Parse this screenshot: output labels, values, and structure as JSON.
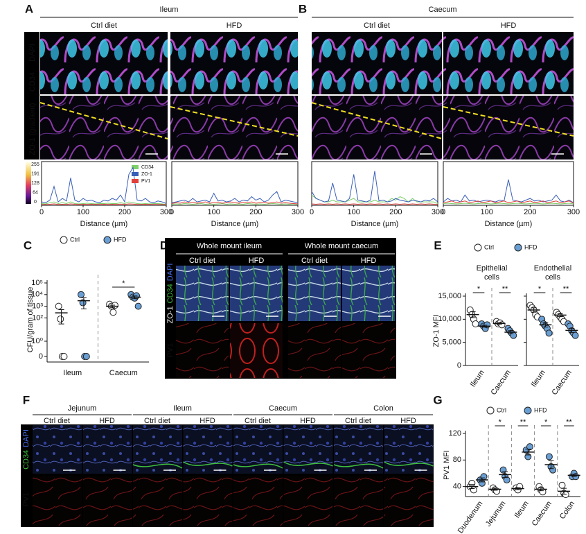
{
  "figure": {
    "A": {
      "letter": "A",
      "title": "Ileum",
      "columns": [
        "Ctrl diet",
        "HFD"
      ]
    },
    "B": {
      "letter": "B",
      "title": "Caecum",
      "columns": [
        "Ctrl diet",
        "HFD"
      ]
    },
    "channels_AB": [
      "DAPI",
      "CD34",
      "ZO-1 (gradient)"
    ],
    "colorbar_ticks": [
      255,
      191,
      128,
      64,
      0
    ],
    "C": {
      "letter": "C"
    },
    "D": {
      "letter": "D",
      "groups": [
        {
          "title": "Whole mount ileum",
          "columns": [
            "Ctrl diet",
            "HFD"
          ]
        },
        {
          "title": "Whole mount caecum",
          "columns": [
            "Ctrl diet",
            "HFD"
          ]
        }
      ],
      "channels": [
        "ZO-1",
        "CD34",
        "DAPI"
      ],
      "channel_bottom": "PV1"
    },
    "E": {
      "letter": "E"
    },
    "F": {
      "letter": "F",
      "groups": [
        {
          "title": "Jejunum",
          "columns": [
            "Ctrl diet",
            "HFD"
          ]
        },
        {
          "title": "Ileum",
          "columns": [
            "Ctrl diet",
            "HFD"
          ]
        },
        {
          "title": "Caecum",
          "columns": [
            "Ctrl diet",
            "HFD"
          ]
        },
        {
          "title": "Colon",
          "columns": [
            "Ctrl diet",
            "HFD"
          ]
        }
      ],
      "channels": [
        "CD34",
        "DAPI"
      ],
      "channel_bottom": "PV1"
    },
    "G": {
      "letter": "G"
    }
  },
  "chart_data": [
    {
      "type": "line",
      "xlabel": "Distance (µm)",
      "x": [
        0,
        10,
        20,
        30,
        40,
        50,
        60,
        70,
        80,
        90,
        100,
        110,
        120,
        130,
        140,
        150,
        160,
        170,
        180,
        190,
        200,
        210,
        220,
        230,
        240,
        250,
        260,
        270,
        280,
        290,
        300
      ],
      "xlim": [
        0,
        300
      ],
      "xticks": [
        0,
        100,
        200,
        300
      ],
      "ylim": [
        0,
        255
      ],
      "series": [
        {
          "name": "CD34",
          "color": "#7fd06a",
          "values": [
            10,
            8,
            15,
            20,
            10,
            15,
            10,
            20,
            10,
            8,
            10,
            12,
            10,
            8,
            10,
            10,
            12,
            10,
            10,
            15,
            10,
            20,
            15,
            10,
            8,
            10,
            8,
            10,
            10,
            8,
            5
          ]
        },
        {
          "name": "ZO-1",
          "color": "#3a5fb8",
          "values": [
            20,
            15,
            30,
            110,
            20,
            40,
            25,
            160,
            30,
            20,
            40,
            25,
            30,
            20,
            15,
            30,
            25,
            40,
            30,
            60,
            20,
            180,
            220,
            30,
            25,
            40,
            20,
            15,
            25,
            20,
            10
          ]
        },
        {
          "name": "PV1",
          "color": "#e0403a",
          "values": [
            5,
            4,
            6,
            8,
            5,
            6,
            5,
            8,
            6,
            5,
            6,
            5,
            6,
            5,
            5,
            6,
            5,
            6,
            5,
            7,
            5,
            8,
            7,
            5,
            5,
            6,
            5,
            5,
            5,
            4,
            3
          ]
        }
      ]
    },
    {
      "type": "line",
      "xlabel": "Distance (µm)",
      "x": [
        0,
        10,
        20,
        30,
        40,
        50,
        60,
        70,
        80,
        90,
        100,
        110,
        120,
        130,
        140,
        150,
        160,
        170,
        180,
        190,
        200,
        210,
        220,
        230,
        240,
        250,
        260,
        270,
        280,
        290,
        300
      ],
      "xlim": [
        0,
        300
      ],
      "xticks": [
        0,
        100,
        200,
        300
      ],
      "ylim": [
        0,
        255
      ],
      "series": [
        {
          "color": "#7fd06a",
          "values": [
            6,
            8,
            6,
            10,
            8,
            6,
            8,
            10,
            6,
            8,
            6,
            8,
            10,
            6,
            8,
            6,
            8,
            6,
            10,
            8,
            6,
            8,
            6,
            8,
            10,
            8,
            6,
            8,
            6,
            8,
            5
          ]
        },
        {
          "color": "#3a5fb8",
          "values": [
            15,
            20,
            25,
            30,
            20,
            40,
            20,
            25,
            30,
            20,
            70,
            25,
            30,
            20,
            25,
            40,
            20,
            30,
            25,
            50,
            30,
            40,
            20,
            30,
            60,
            80,
            20,
            30,
            25,
            20,
            15
          ]
        },
        {
          "color": "#e0403a",
          "values": [
            10,
            15,
            12,
            20,
            15,
            18,
            12,
            15,
            20,
            12,
            15,
            18,
            12,
            15,
            20,
            15,
            12,
            18,
            15,
            20,
            12,
            15,
            18,
            12,
            15,
            20,
            12,
            15,
            12,
            10,
            8
          ]
        }
      ]
    },
    {
      "type": "line",
      "xlabel": "Distance (µm)",
      "x": [
        0,
        10,
        20,
        30,
        40,
        50,
        60,
        70,
        80,
        90,
        100,
        110,
        120,
        130,
        140,
        150,
        160,
        170,
        180,
        190,
        200,
        210,
        220,
        230,
        240,
        250,
        260,
        270,
        280,
        290,
        300
      ],
      "xlim": [
        0,
        300
      ],
      "xticks": [
        0,
        100,
        200,
        300
      ],
      "ylim": [
        0,
        255
      ],
      "series": [
        {
          "color": "#7fd06a",
          "values": [
            60,
            40,
            30,
            20,
            20,
            30,
            20,
            20,
            20,
            30,
            40,
            20,
            20,
            20,
            20,
            30,
            20,
            20,
            20,
            40,
            30,
            50,
            40,
            20,
            40,
            20,
            20,
            20,
            20,
            20,
            10
          ]
        },
        {
          "color": "#3a5fb8",
          "values": [
            80,
            40,
            30,
            20,
            25,
            130,
            30,
            25,
            20,
            40,
            180,
            30,
            25,
            20,
            30,
            200,
            25,
            30,
            20,
            25,
            40,
            30,
            25,
            20,
            30,
            25,
            20,
            30,
            25,
            40,
            20
          ]
        },
        {
          "color": "#e0403a",
          "values": [
            8,
            6,
            8,
            6,
            8,
            6,
            8,
            6,
            8,
            6,
            8,
            6,
            8,
            6,
            8,
            6,
            8,
            6,
            8,
            6,
            8,
            6,
            8,
            6,
            8,
            6,
            8,
            6,
            8,
            6,
            5
          ]
        }
      ]
    },
    {
      "type": "line",
      "xlabel": "Distance (µm)",
      "x": [
        0,
        10,
        20,
        30,
        40,
        50,
        60,
        70,
        80,
        90,
        100,
        110,
        120,
        130,
        140,
        150,
        160,
        170,
        180,
        190,
        200,
        210,
        220,
        230,
        240,
        250,
        260,
        270,
        280,
        290,
        300
      ],
      "xlim": [
        0,
        300
      ],
      "xticks": [
        0,
        100,
        200,
        300
      ],
      "ylim": [
        0,
        255
      ],
      "series": [
        {
          "color": "#7fd06a",
          "values": [
            10,
            12,
            10,
            8,
            10,
            12,
            10,
            8,
            10,
            12,
            10,
            8,
            10,
            12,
            10,
            8,
            10,
            12,
            10,
            8,
            10,
            12,
            10,
            8,
            10,
            12,
            10,
            8,
            10,
            12,
            8
          ]
        },
        {
          "color": "#3a5fb8",
          "values": [
            20,
            40,
            25,
            30,
            20,
            60,
            25,
            30,
            20,
            25,
            30,
            25,
            20,
            30,
            25,
            150,
            30,
            25,
            20,
            30,
            40,
            25,
            30,
            20,
            25,
            30,
            60,
            25,
            20,
            30,
            15
          ]
        },
        {
          "color": "#e0403a",
          "values": [
            15,
            20,
            25,
            15,
            20,
            25,
            15,
            20,
            25,
            15,
            20,
            25,
            15,
            20,
            25,
            15,
            20,
            25,
            15,
            20,
            25,
            15,
            20,
            25,
            15,
            20,
            25,
            15,
            20,
            25,
            12
          ]
        }
      ]
    },
    {
      "type": "dot",
      "ylabel": "CFU/gram of tissue",
      "log_scale": true,
      "ylim": [
        0,
        100000
      ],
      "yticks": [
        {
          "value": 100000,
          "label": "10⁵"
        },
        {
          "value": 10000,
          "label": "10⁴"
        },
        {
          "value": 1000,
          "label": "10³"
        },
        {
          "value": 100,
          "label": "10²"
        },
        {
          "value": 1,
          "label": "10⁰"
        },
        0
      ],
      "categories": [
        "Ileum",
        "Caecum"
      ],
      "series": [
        {
          "name": "Ctrl",
          "color": "#ffffff",
          "points": [
            [
              1000,
              80,
              0,
              0
            ],
            [
              1500,
              1000,
              300,
              1200
            ]
          ],
          "mean": [
            270,
            1000
          ],
          "sem": [
            240,
            250
          ]
        },
        {
          "name": "HFD",
          "color": "#6a9fd4",
          "points": [
            [
              10000,
              2000,
              0,
              0
            ],
            [
              10000,
              6000,
              5000,
              8000,
              1000
            ]
          ],
          "mean": [
            3000,
            6000
          ],
          "sem": [
            2400,
            1600
          ]
        }
      ],
      "significance": [
        null,
        "*"
      ]
    },
    {
      "type": "dot",
      "title": "Epithelial cells",
      "ylabel": "ZO-1 MFI",
      "ylim": [
        0,
        15000
      ],
      "yticks": [
        {
          "value": 15000,
          "label": "15,000"
        },
        {
          "value": 10000,
          "label": "10,000"
        },
        {
          "value": 5000,
          "label": "5,000"
        },
        0
      ],
      "categories": [
        "Ileum",
        "Caecum"
      ],
      "series": [
        {
          "name": "Ctrl",
          "color": "#ffffff",
          "points": [
            [
              12000,
              11000,
              10000,
              9000
            ],
            [
              9500,
              9000,
              9200,
              8800
            ]
          ],
          "mean": [
            11000,
            9100
          ],
          "sem": [
            650,
            150
          ]
        },
        {
          "name": "HFD",
          "color": "#6a9fd4",
          "points": [
            [
              9000,
              8500,
              8000,
              8800
            ],
            [
              8000,
              7500,
              7000,
              6500
            ]
          ],
          "mean": [
            8500,
            7200
          ],
          "sem": [
            220,
            320
          ]
        }
      ],
      "significance": [
        "*",
        "**"
      ]
    },
    {
      "type": "dot",
      "title": "Endothelial cells",
      "ylim": [
        0,
        15000
      ],
      "tick_labels": false,
      "yticks": [
        15000,
        10000,
        5000,
        0
      ],
      "categories": [
        "Ileum",
        "Caecum"
      ],
      "series": [
        {
          "color": "#ffffff",
          "points": [
            [
              13000,
              12500,
              12000,
              11000,
              10500
            ],
            [
              11500,
              11000,
              10500,
              10000,
              9500
            ]
          ],
          "mean": [
            12000,
            10900
          ],
          "sem": [
            460,
            350
          ]
        },
        {
          "color": "#6a9fd4",
          "points": [
            [
              10000,
              9000,
              8500,
              8000,
              7000
            ],
            [
              9000,
              8500,
              7500,
              7000,
              6500
            ]
          ],
          "mean": [
            8800,
            7600
          ],
          "sem": [
            500,
            450
          ]
        }
      ],
      "significance": [
        "*",
        "**"
      ]
    },
    {
      "type": "dot",
      "ylabel": "PV1 MFI",
      "ylim": [
        25,
        120
      ],
      "yticks": [
        120,
        80,
        40
      ],
      "categories": [
        "Duodenum",
        "Jejunum",
        "Ileum",
        "Caecum",
        "Colon"
      ],
      "series": [
        {
          "name": "Ctrl",
          "color": "#ffffff",
          "points": [
            [
              40,
              45,
              35
            ],
            [
              38,
              35,
              33
            ],
            [
              38,
              35,
              40
            ],
            [
              40,
              35,
              32
            ],
            [
              42,
              30,
              28
            ]
          ],
          "mean": [
            40,
            36,
            37,
            36,
            33
          ],
          "sem": [
            3,
            1.5,
            1.5,
            2.3,
            4.4
          ]
        },
        {
          "name": "HFD",
          "color": "#6a9fd4",
          "points": [
            [
              50,
              45,
              55
            ],
            [
              65,
              55,
              50
            ],
            [
              95,
              85,
              100
            ],
            [
              85,
              70,
              65
            ],
            [
              55,
              60,
              55
            ]
          ],
          "mean": [
            50,
            58,
            92,
            73,
            57
          ],
          "sem": [
            3,
            4.4,
            4.4,
            6,
            1.7
          ]
        }
      ],
      "significance": [
        null,
        "*",
        "**",
        "*",
        "**"
      ]
    }
  ]
}
